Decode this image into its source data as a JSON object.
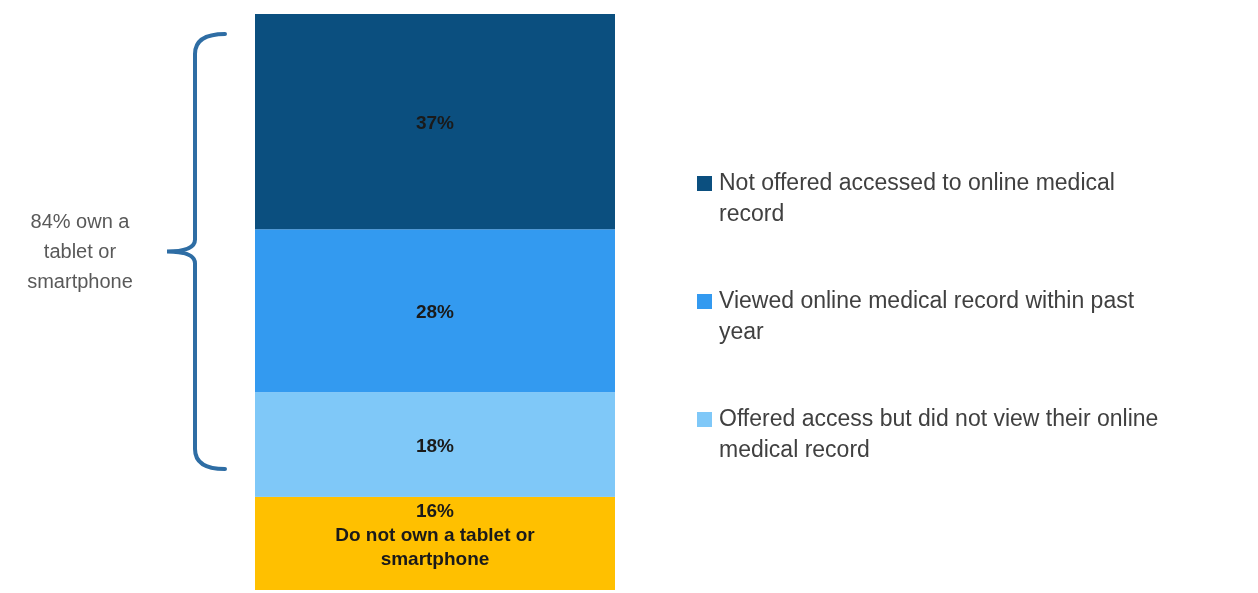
{
  "chart_data": {
    "type": "bar",
    "stacked": true,
    "categories": [
      null
    ],
    "legend": "right",
    "annotations": [
      "84% own a tablet or smartphone"
    ],
    "series": [
      {
        "name": "Do not own a tablet or smartphone",
        "color": "#ffc000",
        "values": [
          16
        ],
        "value_labels": [
          "16%"
        ]
      },
      {
        "name": "Offered access but did not view their online medical record",
        "color": "#7fc8f8",
        "values": [
          18
        ],
        "value_labels": [
          "18%"
        ]
      },
      {
        "name": "Viewed online medical record within past year",
        "color": "#339af0",
        "values": [
          28
        ],
        "value_labels": [
          "28%"
        ]
      },
      {
        "name": "Not offered accessed to online medical record",
        "color": "#0b4f7f",
        "values": [
          37
        ],
        "value_labels": [
          "37%"
        ]
      }
    ]
  }
}
